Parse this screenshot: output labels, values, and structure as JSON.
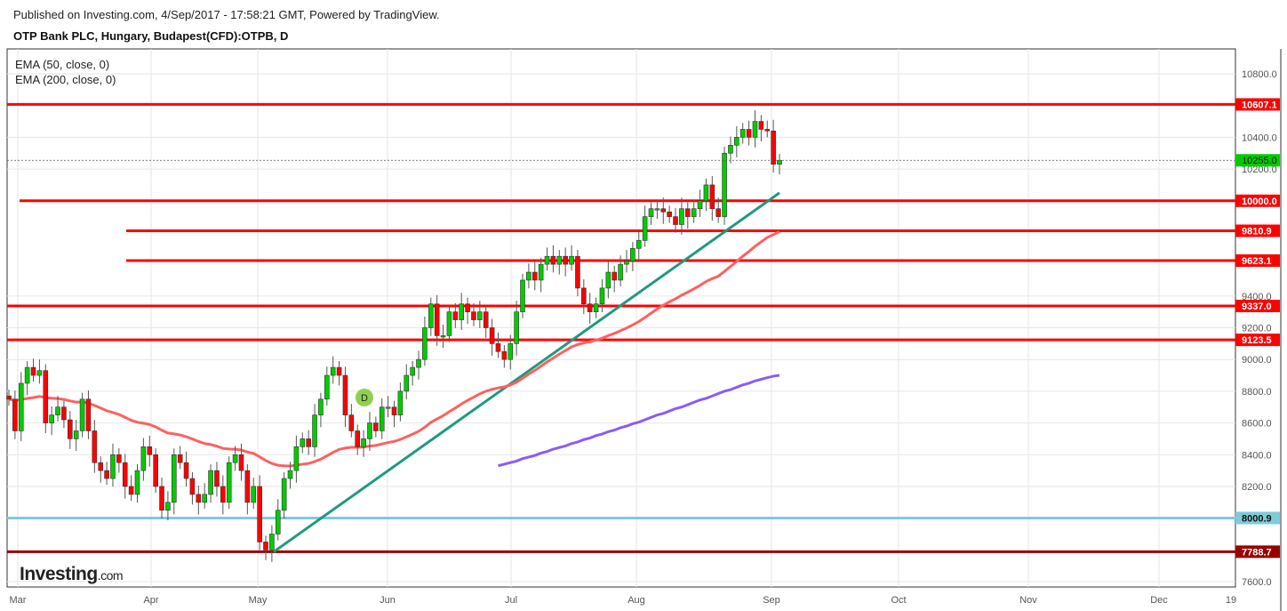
{
  "header": {
    "published": "Published on Investing.com, 4/Sep/2017 - 17:58:21 GMT, Powered by TradingView.",
    "title": "OTP Bank PLC, Hungary, Budapest(CFD):OTPB, D"
  },
  "legend": [
    "EMA (50, close, 0)",
    "EMA (200, close, 0)"
  ],
  "logo": {
    "name": "Investing",
    "suffix": ".com"
  },
  "marker": {
    "label": "D",
    "color": "#8fd14f"
  },
  "chart_data": {
    "type": "candlestick",
    "ylim": [
      7550,
      10950
    ],
    "y_ticks": [
      7600,
      8200,
      8400,
      8600,
      8800,
      9000,
      9200,
      9400,
      10200,
      10400,
      10800
    ],
    "x_ticks": [
      "Mar",
      "Apr",
      "May",
      "Jun",
      "Jul",
      "Aug",
      "Sep",
      "Oct",
      "Nov",
      "Dec",
      "19"
    ],
    "closes": [
      8750,
      8550,
      8850,
      8950,
      8900,
      8930,
      8600,
      8650,
      8700,
      8620,
      8500,
      8550,
      8750,
      8550,
      8350,
      8300,
      8250,
      8400,
      8350,
      8200,
      8150,
      8300,
      8450,
      8400,
      8200,
      8050,
      8100,
      8400,
      8350,
      8250,
      8150,
      8100,
      8150,
      8300,
      8200,
      8100,
      8350,
      8400,
      8300,
      8100,
      8200,
      7850,
      7800,
      7900,
      8050,
      8250,
      8300,
      8450,
      8500,
      8450,
      8650,
      8750,
      8900,
      8950,
      8900,
      8650,
      8550,
      8450,
      8500,
      8600,
      8550,
      8700,
      8700,
      8650,
      8800,
      8900,
      8950,
      9000,
      9200,
      9350,
      9150,
      9150,
      9300,
      9250,
      9350,
      9300,
      9250,
      9300,
      9200,
      9100,
      9050,
      9000,
      9100,
      9300,
      9500,
      9550,
      9500,
      9600,
      9650,
      9600,
      9650,
      9600,
      9650,
      9450,
      9350,
      9300,
      9350,
      9450,
      9550,
      9500,
      9600,
      9620,
      9700,
      9750,
      9900,
      9950,
      9950,
      9930,
      9900,
      9850,
      9950,
      9900,
      9950,
      10000,
      10100,
      9950,
      9900,
      10300,
      10350,
      10400,
      10450,
      10400,
      10500,
      10450,
      10440,
      10230,
      10255
    ],
    "ema200_tail": [
      8330,
      8340,
      8350,
      8360,
      8375,
      8385,
      8395,
      8410,
      8420,
      8435,
      8445,
      8455,
      8470,
      8480,
      8495,
      8505,
      8520,
      8530,
      8545,
      8555,
      8570,
      8580,
      8595,
      8605,
      8620,
      8635,
      8650,
      8660,
      8675,
      8690,
      8700,
      8715,
      8730,
      8745,
      8755,
      8770,
      8785,
      8800,
      8810,
      8825,
      8840,
      8850,
      8865,
      8875,
      8885,
      8895,
      8900
    ],
    "levels": [
      {
        "value": 10607.1,
        "label": "10607.1",
        "color": "#ff0000"
      },
      {
        "value": 10000.0,
        "label": "10000.0",
        "color": "#ff0000"
      },
      {
        "value": 9810.9,
        "label": "9810.9",
        "color": "#ff0000"
      },
      {
        "value": 9623.1,
        "label": "9623.1",
        "color": "#ff0000"
      },
      {
        "value": 9337.0,
        "label": "9337.0",
        "color": "#ff0000"
      },
      {
        "value": 9123.5,
        "label": "9123.5",
        "color": "#ff0000"
      },
      {
        "value": 8000.9,
        "label": "8000.9",
        "color": "#7ecbd9"
      },
      {
        "value": 7788.7,
        "label": "7788.7",
        "color": "#990000"
      }
    ],
    "last_price": {
      "value": 10255.0,
      "label": "10255.0",
      "color": "#00cc00"
    },
    "trendline": {
      "from": 7788,
      "to": 10050,
      "color": "#1f9a7e"
    },
    "colors": {
      "up": "#00cc00",
      "down": "#ff0000",
      "ema50": "#ff6060",
      "ema200": "#8b5cf6"
    }
  }
}
